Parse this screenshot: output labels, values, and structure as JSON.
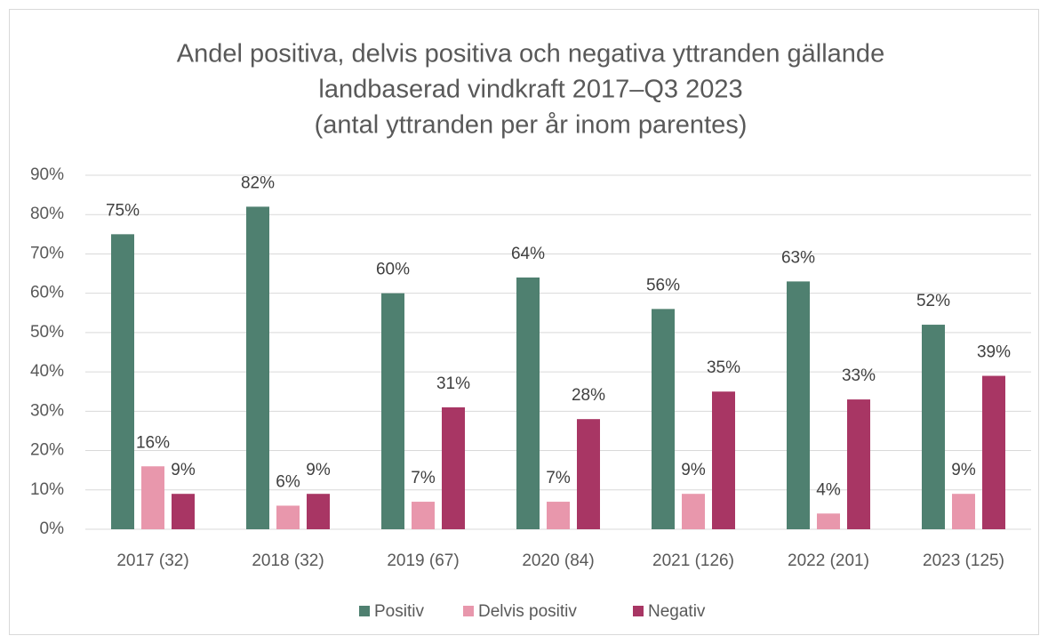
{
  "chart_data": {
    "type": "bar",
    "title": [
      "Andel positiva, delvis positiva och negativa yttranden gällande",
      "landbaserad vindkraft 2017–Q3 2023",
      "(antal yttranden per år inom parentes)"
    ],
    "categories": [
      "2017 (32)",
      "2018 (32)",
      "2019 (67)",
      "2020 (84)",
      "2021 (126)",
      "2022 (201)",
      "2023 (125)"
    ],
    "series": [
      {
        "name": "Positiv",
        "color": "#4f8070",
        "values": [
          75,
          82,
          60,
          64,
          56,
          63,
          52
        ],
        "value_labels": [
          "75%",
          "82%",
          "60%",
          "64%",
          "56%",
          "63%",
          "52%"
        ]
      },
      {
        "name": "Delvis positiv",
        "color": "#e897ac",
        "values": [
          16,
          6,
          7,
          7,
          9,
          4,
          9
        ],
        "value_labels": [
          "16%",
          "6%",
          "7%",
          "7%",
          "9%",
          "4%",
          "9%"
        ]
      },
      {
        "name": "Negativ",
        "color": "#a83664",
        "values": [
          9,
          9,
          31,
          28,
          35,
          33,
          39
        ],
        "value_labels": [
          "9%",
          "9%",
          "31%",
          "28%",
          "35%",
          "33%",
          "39%"
        ]
      }
    ],
    "ylim": [
      0,
      90
    ],
    "yticks": [
      {
        "value": 0,
        "label": "0%"
      },
      {
        "value": 10,
        "label": "10%"
      },
      {
        "value": 20,
        "label": "20%"
      },
      {
        "value": 30,
        "label": "30%"
      },
      {
        "value": 40,
        "label": "40%"
      },
      {
        "value": 50,
        "label": "50%"
      },
      {
        "value": 60,
        "label": "60%"
      },
      {
        "value": 70,
        "label": "70%"
      },
      {
        "value": 80,
        "label": "80%"
      },
      {
        "value": 90,
        "label": "90%"
      }
    ],
    "grid": true,
    "legend": "bottom"
  }
}
